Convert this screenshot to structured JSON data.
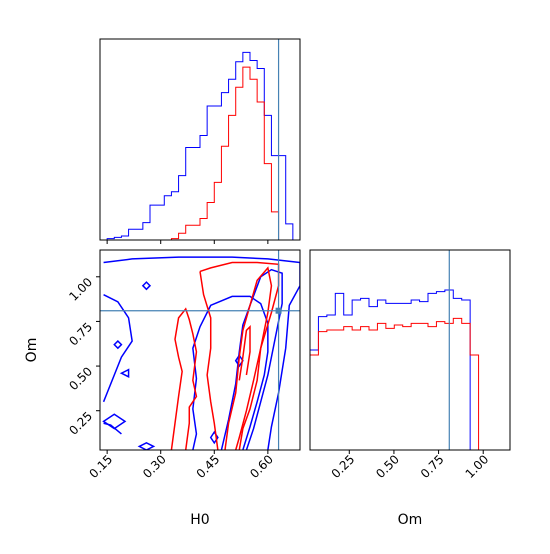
{
  "colors": {
    "series_a": "#0000ff",
    "series_b": "#ff0000",
    "truth": "#4682b4",
    "axis": "#000000",
    "background": "#ffffff"
  },
  "axes": {
    "h0": {
      "label": "H0",
      "ticks": [
        "0.15",
        "0.30",
        "0.45",
        "0.60"
      ],
      "tick_values": [
        0.15,
        0.3,
        0.45,
        0.6
      ],
      "range": [
        0.13,
        0.69
      ]
    },
    "om": {
      "label": "Om",
      "ticks": [
        "0.25",
        "0.50",
        "0.75",
        "1.00"
      ],
      "tick_values": [
        0.25,
        0.5,
        0.75,
        1.0
      ],
      "range": [
        0.03,
        1.15
      ]
    }
  },
  "chart_data": [
    {
      "type": "histogram",
      "panel": "H0 marginal",
      "x_edges": [
        0.13,
        0.15,
        0.17,
        0.19,
        0.21,
        0.23,
        0.25,
        0.27,
        0.29,
        0.31,
        0.33,
        0.35,
        0.37,
        0.39,
        0.41,
        0.43,
        0.45,
        0.47,
        0.49,
        0.51,
        0.53,
        0.55,
        0.57,
        0.59,
        0.61,
        0.63,
        0.65,
        0.67,
        0.69
      ],
      "series": [
        {
          "values": [
            0,
            1,
            2,
            3,
            8,
            8,
            13,
            26,
            26,
            33,
            36,
            48,
            69,
            69,
            78,
            100,
            100,
            110,
            120,
            133,
            140,
            134,
            128,
            93,
            63,
            63,
            12,
            0
          ]
        },
        {
          "values": [
            0,
            0,
            0,
            0,
            0,
            0,
            0,
            0,
            0,
            0,
            1,
            5,
            11,
            11,
            16,
            28,
            43,
            70,
            93,
            114,
            129,
            120,
            103,
            57,
            21,
            0,
            0,
            0
          ]
        }
      ],
      "truth_x": 0.63
    },
    {
      "type": "contour",
      "panel": "H0 vs Om",
      "xlabel": "H0",
      "ylabel": "Om",
      "xlim": [
        0.13,
        0.69
      ],
      "ylim": [
        0.03,
        1.15
      ],
      "truth": {
        "x": 0.63,
        "y": 0.81
      },
      "levels": 3
    },
    {
      "type": "histogram",
      "panel": "Om marginal",
      "x_edges": [
        0.03,
        0.0772,
        0.1244,
        0.1716,
        0.2188,
        0.266,
        0.3132,
        0.3604,
        0.4076,
        0.4548,
        0.502,
        0.5492,
        0.5964,
        0.6436,
        0.6908,
        0.738,
        0.7852,
        0.8324,
        0.8796,
        0.9268,
        0.974,
        1.0212
      ],
      "series": [
        {
          "values": [
            60,
            80,
            81,
            94,
            81,
            90,
            91,
            86,
            90,
            88,
            88,
            88,
            90,
            89,
            94,
            95,
            96,
            91,
            90,
            0,
            0
          ]
        },
        {
          "values": [
            57,
            71,
            72,
            72,
            74,
            72,
            74,
            72,
            76,
            73,
            75,
            74,
            76,
            76,
            74,
            77,
            76,
            79,
            76,
            57,
            0
          ]
        }
      ],
      "truth_x": 0.81
    }
  ]
}
